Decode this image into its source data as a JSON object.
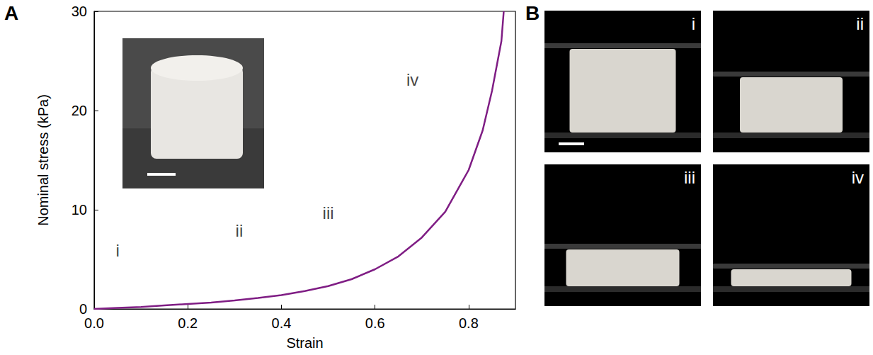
{
  "panel_labels": [
    "A",
    "B"
  ],
  "chart_data": {
    "type": "line",
    "x_label": "Strain",
    "y_label": "Nominal stress (kPa)",
    "x": [
      0,
      0.05,
      0.1,
      0.15,
      0.2,
      0.25,
      0.3,
      0.35,
      0.4,
      0.45,
      0.5,
      0.55,
      0.6,
      0.65,
      0.7,
      0.75,
      0.8,
      0.83,
      0.85,
      0.87,
      0.875
    ],
    "series": [
      {
        "color": "#7f1d84",
        "line_style": "solid",
        "values": [
          0,
          0.1,
          0.2,
          0.35,
          0.5,
          0.65,
          0.85,
          1.1,
          1.4,
          1.8,
          2.3,
          3.0,
          4.0,
          5.3,
          7.2,
          9.8,
          14.0,
          18.0,
          22.0,
          27.0,
          30.0
        ]
      }
    ],
    "xlim": [
      0,
      0.9
    ],
    "xticks": [
      {
        "value": 0,
        "label": "0.0"
      },
      0.2,
      0.4,
      0.6,
      0.8
    ],
    "ylim": [
      0,
      30
    ],
    "yticks": [
      0,
      10,
      20,
      30
    ],
    "grid": false,
    "annotations": [
      {
        "text": "i",
        "x": 0.05,
        "y": 5.9
      },
      {
        "text": "ii",
        "x": 0.31,
        "y": 7.9
      },
      {
        "text": "iii",
        "x": 0.5,
        "y": 9.7
      },
      {
        "text": "iv",
        "x": 0.68,
        "y": 23.1
      }
    ]
  },
  "photos": [
    {
      "label": "i"
    },
    {
      "label": "ii"
    },
    {
      "label": "iii"
    },
    {
      "label": "iv"
    }
  ]
}
